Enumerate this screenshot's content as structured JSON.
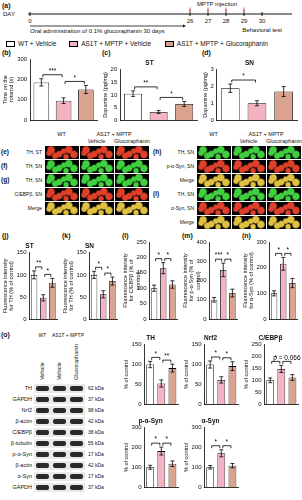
{
  "timeline": {
    "panel": "(a)",
    "axis_label": "DAY",
    "ticks": [
      "0",
      "26",
      "27",
      "28",
      "29",
      "30"
    ],
    "events": [
      {
        "text": "MPTP injection",
        "from": "26",
        "to": "29"
      },
      {
        "text": "Behavioral test",
        "at": "30"
      }
    ],
    "period": "Oral administration of 0.1% glucoraphanin 30 days"
  },
  "groups": [
    {
      "name": "WT + Vehicle",
      "color": "#ffffff"
    },
    {
      "name": "AS1T + MPTP + Vehicle",
      "color": "#f4b3c2"
    },
    {
      "name": "AS1T + MPTP + Glucoraphanin",
      "color": "#d9a38f"
    }
  ],
  "chart_data": [
    {
      "panel": "(b)",
      "type": "bar",
      "y_label": "Time on the rotarod (s)",
      "categories": [
        "WT + Vehicle",
        "AS1T + MPTP + Vehicle",
        "AS1T + MPTP + Glucoraphanin"
      ],
      "values": [
        185,
        95,
        150
      ],
      "errors": [
        18,
        14,
        20
      ],
      "colors": [
        "#ffffff",
        "#f4b3c2",
        "#d9a38f"
      ],
      "ylim": [
        0,
        300
      ],
      "yticks": [
        0,
        100,
        200,
        300
      ],
      "grid": false,
      "tick_labels": "y",
      "annotations": [
        {
          "between": [
            0,
            1
          ],
          "text": "***"
        },
        {
          "between": [
            1,
            2
          ],
          "text": "*"
        }
      ]
    },
    {
      "panel": "(c)",
      "type": "bar",
      "title": "ST",
      "y_label": "Dopamine (pg/mg)",
      "categories": [
        "WT + Vehicle",
        "AS1T + MPTP + Vehicle",
        "AS1T + MPTP + Glucoraphanin"
      ],
      "values": [
        10.5,
        3.2,
        6.4
      ],
      "errors": [
        1.1,
        0.6,
        1.0
      ],
      "colors": [
        "#ffffff",
        "#f4b3c2",
        "#d9a38f"
      ],
      "ylim": [
        0,
        20
      ],
      "yticks": [
        0,
        5,
        10,
        15,
        20
      ],
      "grid": false,
      "tick_labels": "y",
      "annotations": [
        {
          "between": [
            0,
            1
          ],
          "text": "**"
        },
        {
          "between": [
            1,
            2
          ],
          "text": "*"
        }
      ]
    },
    {
      "panel": "(d)",
      "type": "bar",
      "title": "SN",
      "y_label": "Dopamine (pg/mg)",
      "categories": [
        "WT + Vehicle",
        "AS1T + MPTP + Vehicle",
        "AS1T + MPTP + Glucoraphanin"
      ],
      "values": [
        1.9,
        1.0,
        1.7
      ],
      "errors": [
        0.25,
        0.15,
        0.3
      ],
      "colors": [
        "#ffffff",
        "#f4b3c2",
        "#d9a38f"
      ],
      "ylim": [
        0,
        3
      ],
      "yticks": [
        0,
        1,
        2,
        3
      ],
      "grid": false,
      "tick_labels": "y",
      "annotations": [
        {
          "between": [
            0,
            1
          ],
          "text": "*"
        }
      ]
    },
    {
      "panel": "(j)",
      "type": "bar",
      "title": "ST",
      "y_label": "Fluorescence intensity for TH (% of control)",
      "categories": [
        "WT + Vehicle",
        "AS1T + MPTP + Vehicle",
        "AS1T + MPTP + Glucoraphanin"
      ],
      "values": [
        100,
        48,
        82
      ],
      "errors": [
        9,
        7,
        10
      ],
      "colors": [
        "#ffffff",
        "#f4b3c2",
        "#d9a38f"
      ],
      "ylim": [
        0,
        150
      ],
      "yticks": [
        0,
        50,
        100,
        150
      ],
      "grid": false,
      "tick_labels": "y",
      "annotations": [
        {
          "between": [
            0,
            1
          ],
          "text": "**"
        },
        {
          "between": [
            1,
            2
          ],
          "text": "*"
        }
      ]
    },
    {
      "panel": "(k)",
      "type": "bar",
      "title": "SN",
      "y_label": "Fluorescence intensity for TH (% of control)",
      "categories": [
        "WT + Vehicle",
        "AS1T + MPTP + Vehicle",
        "AS1T + MPTP + Glucoraphanin"
      ],
      "values": [
        100,
        56,
        86
      ],
      "errors": [
        8,
        8,
        9
      ],
      "colors": [
        "#ffffff",
        "#f4b3c2",
        "#d9a38f"
      ],
      "ylim": [
        0,
        150
      ],
      "yticks": [
        0,
        50,
        100,
        150
      ],
      "grid": false,
      "tick_labels": "y",
      "annotations": [
        {
          "between": [
            0,
            1
          ],
          "text": "*"
        },
        {
          "between": [
            1,
            2
          ],
          "text": "*"
        }
      ]
    },
    {
      "panel": "(l)",
      "type": "bar",
      "y_label": "Fluorescence intensity for C/EBPβ (% of control)",
      "categories": [
        "WT + Vehicle",
        "AS1T + MPTP + Vehicle",
        "AS1T + MPTP + Glucoraphanin"
      ],
      "values": [
        100,
        165,
        112
      ],
      "errors": [
        10,
        18,
        12
      ],
      "colors": [
        "#ffffff",
        "#f4b3c2",
        "#d9a38f"
      ],
      "ylim": [
        0,
        250
      ],
      "yticks": [
        0,
        50,
        100,
        150,
        200,
        250
      ],
      "grid": false,
      "tick_labels": "y",
      "annotations": [
        {
          "between": [
            0,
            1
          ],
          "text": "*"
        },
        {
          "between": [
            1,
            2
          ],
          "text": "*"
        }
      ]
    },
    {
      "panel": "(m)",
      "type": "bar",
      "y_label": "Fluorescence intensity for p-α-Syn (% of control)",
      "categories": [
        "WT + Vehicle",
        "AS1T + MPTP + Vehicle",
        "AS1T + MPTP + Glucoraphanin"
      ],
      "values": [
        100,
        255,
        135
      ],
      "errors": [
        12,
        35,
        20
      ],
      "colors": [
        "#ffffff",
        "#f4b3c2",
        "#d9a38f"
      ],
      "ylim": [
        0,
        400
      ],
      "yticks": [
        0,
        100,
        200,
        300,
        400
      ],
      "grid": false,
      "tick_labels": "y",
      "annotations": [
        {
          "between": [
            0,
            1
          ],
          "text": "***"
        },
        {
          "between": [
            1,
            2
          ],
          "text": "*"
        }
      ]
    },
    {
      "panel": "(n)",
      "type": "bar",
      "y_label": "Fluorescence intensity for α-Syn (% of control)",
      "categories": [
        "WT + Vehicle",
        "AS1T + MPTP + Vehicle",
        "AS1T + MPTP + Glucoraphanin"
      ],
      "values": [
        100,
        215,
        140
      ],
      "errors": [
        10,
        25,
        18
      ],
      "colors": [
        "#ffffff",
        "#f4b3c2",
        "#d9a38f"
      ],
      "ylim": [
        0,
        300
      ],
      "yticks": [
        0,
        100,
        200,
        300
      ],
      "grid": false,
      "tick_labels": "y",
      "annotations": [
        {
          "between": [
            0,
            1
          ],
          "text": "*"
        },
        {
          "between": [
            1,
            2
          ],
          "text": "*"
        }
      ]
    },
    {
      "type": "bar",
      "title": "TH",
      "y_label": "% of control",
      "categories": [
        "WT + Vehicle",
        "AS1T + MPTP + Vehicle",
        "AS1T + MPTP + Glucoraphanin"
      ],
      "values": [
        100,
        52,
        91
      ],
      "errors": [
        8,
        9,
        10
      ],
      "colors": [
        "#ffffff",
        "#f4b3c2",
        "#d9a38f"
      ],
      "ylim": [
        0,
        150
      ],
      "yticks": [
        0,
        50,
        100,
        150
      ],
      "grid": false,
      "tick_labels": "y",
      "annotations": [
        {
          "between": [
            0,
            1
          ],
          "text": "*"
        },
        {
          "between": [
            1,
            2
          ],
          "text": "**"
        }
      ]
    },
    {
      "type": "bar",
      "title": "Nrf2",
      "y_label": "% of control",
      "categories": [
        "WT + Vehicle",
        "AS1T + MPTP + Vehicle",
        "AS1T + MPTP + Glucoraphanin"
      ],
      "values": [
        100,
        61,
        96
      ],
      "errors": [
        9,
        8,
        11
      ],
      "colors": [
        "#ffffff",
        "#f4b3c2",
        "#d9a38f"
      ],
      "ylim": [
        0,
        150
      ],
      "yticks": [
        0,
        50,
        100,
        150
      ],
      "grid": false,
      "tick_labels": "y",
      "annotations": [
        {
          "between": [
            0,
            1
          ],
          "text": "*"
        },
        {
          "between": [
            1,
            2
          ],
          "text": "*"
        }
      ]
    },
    {
      "type": "bar",
      "title": "C/EBPβ",
      "y_label": "% of control",
      "categories": [
        "WT + Vehicle",
        "AS1T + MPTP + Vehicle",
        "AS1T + MPTP + Glucoraphanin"
      ],
      "values": [
        100,
        148,
        112
      ],
      "errors": [
        10,
        15,
        12
      ],
      "colors": [
        "#ffffff",
        "#f4b3c2",
        "#d9a38f"
      ],
      "ylim": [
        0,
        250
      ],
      "yticks": [
        0,
        50,
        100,
        150,
        200,
        250
      ],
      "grid": false,
      "tick_labels": "y",
      "annotations": [
        {
          "between": [
            0,
            1
          ],
          "text": "*"
        },
        {
          "between": [
            1,
            2
          ],
          "text": "p = 0.066"
        }
      ]
    },
    {
      "type": "bar",
      "title": "p-α-Syn",
      "y_label": "% of control",
      "categories": [
        "WT + Vehicle",
        "AS1T + MPTP + Vehicle",
        "AS1T + MPTP + Glucoraphanin"
      ],
      "values": [
        100,
        182,
        118
      ],
      "errors": [
        10,
        20,
        14
      ],
      "colors": [
        "#ffffff",
        "#f4b3c2",
        "#d9a38f"
      ],
      "ylim": [
        0,
        300
      ],
      "yticks": [
        0,
        100,
        200,
        300
      ],
      "grid": false,
      "tick_labels": "y",
      "annotations": [
        {
          "between": [
            0,
            1
          ],
          "text": "*"
        },
        {
          "between": [
            1,
            2
          ],
          "text": "*"
        }
      ]
    },
    {
      "type": "bar",
      "title": "α-Syn",
      "y_label": "% of control",
      "categories": [
        "WT + Vehicle",
        "AS1T + MPTP + Vehicle",
        "AS1T + MPTP + Glucoraphanin"
      ],
      "values": [
        100,
        171,
        108
      ],
      "errors": [
        9,
        18,
        11
      ],
      "colors": [
        "#ffffff",
        "#f4b3c2",
        "#d9a38f"
      ],
      "ylim": [
        0,
        300
      ],
      "yticks": [
        0,
        100,
        200,
        300
      ],
      "grid": false,
      "tick_labels": "y",
      "annotations": [
        {
          "between": [
            0,
            1
          ],
          "text": "*"
        },
        {
          "between": [
            1,
            2
          ],
          "text": "*"
        }
      ]
    }
  ],
  "image_groups": [
    {
      "columns": {
        "top": [
          {
            "text": "WT",
            "span": 1
          },
          {
            "text": "AS1T + MPTP",
            "span": 2
          }
        ],
        "bottom": [
          null,
          "Vehicle",
          "Glucoraphanin"
        ]
      },
      "panels": [
        {
          "panel": "(e)",
          "rows": [
            {
              "label": "TH, ST",
              "color": "#e0402a"
            }
          ]
        },
        {
          "panel": "(f)",
          "rows": [
            {
              "label": "TH, SN",
              "color": "#3fcf3f"
            }
          ]
        },
        {
          "panel": "(g)",
          "rows": [
            {
              "label": "TH, SN",
              "color": "#3fcf3f"
            },
            {
              "label": "C/EBPβ, SN",
              "color": "#e0402a"
            },
            {
              "label": "Merge",
              "color": "#e0c040"
            }
          ]
        }
      ]
    },
    {
      "columns": {
        "top": [
          {
            "text": "WT",
            "span": 1
          },
          {
            "text": "AS1T + MPTP",
            "span": 2
          }
        ],
        "bottom": [
          null,
          "Vehicle",
          "Glucoraphanin"
        ]
      },
      "panels": [
        {
          "panel": "(h)",
          "rows": [
            {
              "label": "TH, SN",
              "color": "#3fcf3f"
            },
            {
              "label": "p-α-Syn, SN",
              "color": "#e0402a"
            },
            {
              "label": "Merge",
              "color": "#e0c040"
            }
          ]
        },
        {
          "panel": "(i)",
          "rows": [
            {
              "label": "TH, SN",
              "color": "#3fcf3f"
            },
            {
              "label": "α-Syn, SN",
              "color": "#e0402a"
            },
            {
              "label": "Merge",
              "color": "#e0c040"
            }
          ]
        }
      ]
    }
  ],
  "blot": {
    "panel": "(o)",
    "columns": {
      "top": [
        {
          "text": "WT",
          "span": 1
        },
        {
          "text": "AS1T + MPTP",
          "span": 2
        }
      ],
      "bottom": [
        "Vehicle",
        "Vehicle",
        "Glucoraphanin"
      ]
    },
    "rows": [
      {
        "name": "TH",
        "size": "62 kDa"
      },
      {
        "name": "GAPDH",
        "size": "37 kDa"
      },
      {
        "name": "Nrf2",
        "size": "98 kDa"
      },
      {
        "name": "β-actin",
        "size": "42 kDa"
      },
      {
        "name": "C/EBPβ",
        "size": "38 kDa"
      },
      {
        "name": "β-tubulin",
        "size": "55 kDa"
      },
      {
        "name": "p-α-Syn",
        "size": "17 kDa"
      },
      {
        "name": "β-actin",
        "size": "42 kDa"
      },
      {
        "name": "α-Syn",
        "size": "17 kDa"
      },
      {
        "name": "GAPDH",
        "size": "37 kDa"
      }
    ]
  }
}
